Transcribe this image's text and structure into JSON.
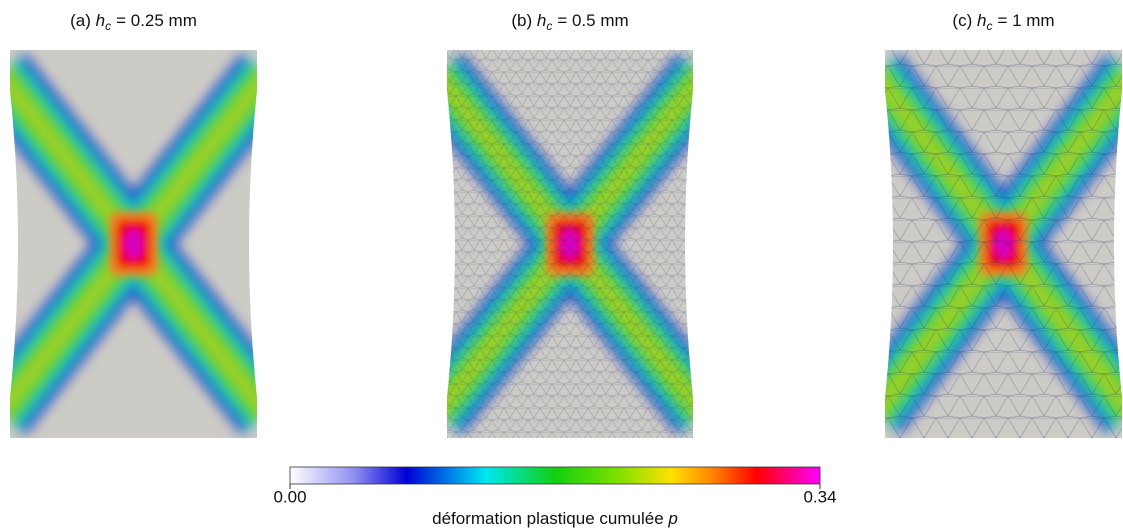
{
  "panels": [
    {
      "label": "(a)",
      "var": "h",
      "sub": "c",
      "rest": "= 0.25 mm"
    },
    {
      "label": "(b)",
      "var": "h",
      "sub": "c",
      "rest": "= 0.5 mm"
    },
    {
      "label": "(c)",
      "var": "h",
      "sub": "c",
      "rest": "= 1 mm"
    }
  ],
  "colorbar": {
    "range": [
      0,
      0.34
    ],
    "ticks": [
      {
        "value": 0,
        "label": "0.00"
      },
      0.34
    ],
    "label": "déformation plastique cumulée",
    "label_var": "p"
  }
}
